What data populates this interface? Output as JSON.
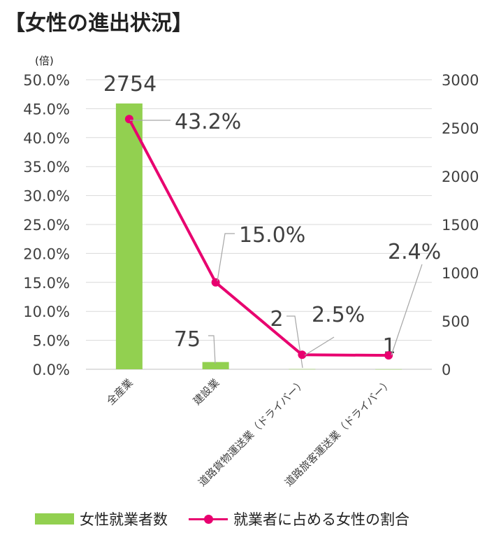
{
  "title": "【女性の進出状況】",
  "left_axis_unit": "(倍)",
  "chart_data": {
    "type": "bar",
    "categories": [
      "全産業",
      "建設業",
      "道路貨物運送業（ドライバー）",
      "道路旅客運送業（ドライバー）"
    ],
    "series": [
      {
        "name": "女性就業者数",
        "type": "bar",
        "axis": "right",
        "values": [
          2754,
          75,
          2,
          1
        ],
        "labels": [
          "2754",
          "75",
          "2",
          "1"
        ],
        "color": "#92d050"
      },
      {
        "name": "就業者に占める女性の割合",
        "type": "line",
        "axis": "left",
        "values": [
          43.2,
          15.0,
          2.5,
          2.4
        ],
        "labels": [
          "43.2%",
          "15.0%",
          "2.5%",
          "2.4%"
        ],
        "color": "#e8006f",
        "highlight_color": "#ff0000",
        "highlight_index": 2
      }
    ],
    "y_left": {
      "range": [
        0,
        50
      ],
      "ticks": [
        "0.0%",
        "5.0%",
        "10.0%",
        "15.0%",
        "20.0%",
        "25.0%",
        "30.0%",
        "35.0%",
        "40.0%",
        "45.0%",
        "50.0%"
      ]
    },
    "y_right": {
      "range": [
        0,
        3000
      ],
      "ticks": [
        "0",
        "500",
        "1000",
        "1500",
        "2000",
        "2500",
        "3000"
      ]
    },
    "grid": true,
    "legend_position": "bottom"
  }
}
